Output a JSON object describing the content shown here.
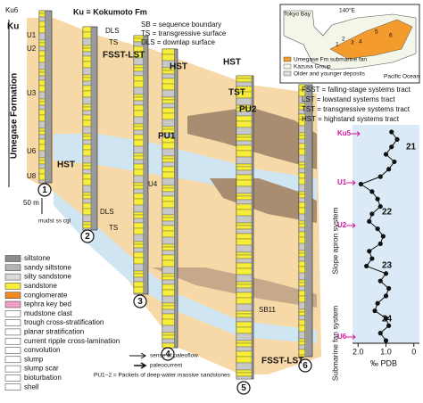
{
  "header": {
    "formation_label": "Ku = Kokumoto Fm",
    "abbreviations": [
      "SB = sequence boundary",
      "TS = transgressive surface",
      "DLS = downlap surface"
    ]
  },
  "tract_abbreviations": [
    "FSST = falling-stage systems tract",
    "LST = lowstand systems tract",
    "TST = transgressive systems tract",
    "HST = highstand systems tract"
  ],
  "map": {
    "labels": [
      "Tokyo Bay",
      "140°E",
      "Pacific Ocean"
    ],
    "site_numbers": [
      "1",
      "2",
      "3",
      "4",
      "5",
      "6"
    ],
    "legend": [
      "Umegase Fm submarine fan",
      "Kazusa Group",
      "Older and younger deposits"
    ]
  },
  "section": {
    "unit_labels": [
      "Ku6",
      "Ku",
      "U1",
      "U2",
      "U3",
      "U6",
      "U8"
    ],
    "formation": "Umegase Formation",
    "scale": "50 m",
    "lithology_axis": "mudst ss cgl",
    "columns": [
      "1",
      "2",
      "3",
      "4",
      "5",
      "6"
    ],
    "annotations": [
      "HST",
      "DLS",
      "TS",
      "FSST-LST",
      "HST",
      "TST",
      "PU1",
      "PU2",
      "HST",
      "U4",
      "DLS",
      "TS",
      "SB11",
      "FSST-LST"
    ]
  },
  "legend": {
    "lithology": [
      "siltstone",
      "sandy siltstone",
      "silty sandstone",
      "sandstone",
      "conglomerate",
      "tephra key bed",
      "mudstone clast",
      "trough cross-stratification",
      "planar stratification",
      "current ripple cross-lamination",
      "convolution",
      "slump",
      "slump scar",
      "bioturbation",
      "shell"
    ],
    "paleoflow": [
      "sense of paleoflow",
      "paleocurrent"
    ],
    "note": "PU1−2 = Packets of deep-water massive sandstones"
  },
  "pdb_plot": {
    "type": "line",
    "xlabel": "‰ PDB",
    "xlim": [
      2.2,
      -0.2
    ],
    "xticks": [
      {
        "value": 2,
        "label": "2.0"
      },
      {
        "value": 1,
        "label": "1.0"
      },
      0
    ],
    "values": [
      0.8,
      0.6,
      0.8,
      1.0,
      0.7,
      0.9,
      1.2,
      1.9,
      1.5,
      1.3,
      1.2,
      1.5,
      1.6,
      1.3,
      1.1,
      1.2,
      1.6,
      1.5,
      1.7,
      1.0,
      1.2,
      0.9,
      1.0,
      1.3,
      1.4,
      1.0,
      0.9,
      1.2,
      1.0
    ],
    "horizon_labels": [
      "Ku5",
      "U1",
      "U2",
      "U6"
    ],
    "sequence_labels": [
      "21",
      "22",
      "23",
      "24"
    ],
    "system_labels": [
      "Slope apron system",
      "Submarine fan system"
    ]
  }
}
